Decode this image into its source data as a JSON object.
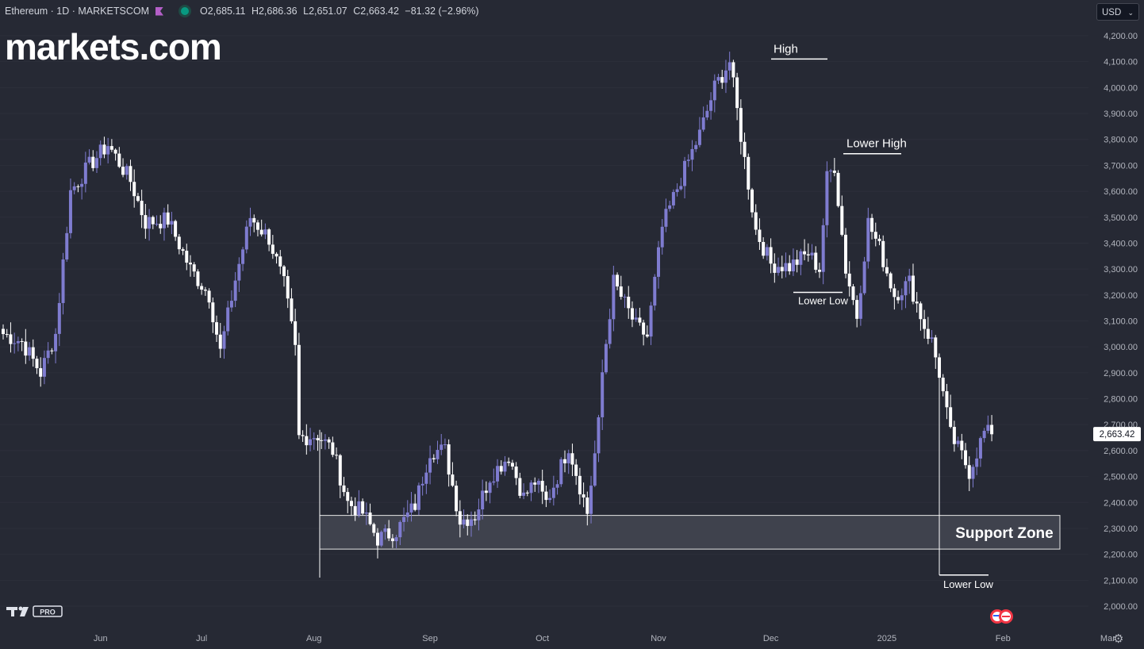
{
  "header": {
    "symbol": "Ethereum · 1D · MARKETSCOM",
    "open_key": "O",
    "open": "2,685.11",
    "high_key": "H",
    "high": "2,686.36",
    "low_key": "L",
    "low": "2,651.07",
    "close_key": "C",
    "close": "2,663.42",
    "change": "−81.32 (−2.96%)"
  },
  "logo_text": "markets.com",
  "currency_select": "USD",
  "icons": [
    "flag-icon",
    "market-status-icon",
    "chevron-down-icon",
    "tradingview-logo-icon",
    "settings-gear-icon",
    "economic-events-icon"
  ],
  "colors": {
    "background": "#262934",
    "bull": "#7f7cd0",
    "bear": "#ffffff",
    "text": "#d1d4dc",
    "zone": "#3f424d"
  },
  "chart_data": {
    "type": "candlestick",
    "title": "Ethereum · 1D · MARKETSCOM",
    "y_ticks": [
      "4,200.00",
      "4,100.00",
      "4,000.00",
      "3,900.00",
      "3,800.00",
      "3,700.00",
      "3,600.00",
      "3,500.00",
      "3,400.00",
      "3,300.00",
      "3,200.00",
      "3,100.00",
      "3,000.00",
      "2,900.00",
      "2,800.00",
      "2,700.00",
      "2,600.00",
      "2,500.00",
      "2,400.00",
      "2,300.00",
      "2,200.00",
      "2,100.00",
      "2,000.00"
    ],
    "x_ticks": [
      "Jun",
      "Jul",
      "Aug",
      "Sep",
      "Oct",
      "Nov",
      "Dec",
      "2025",
      "Feb",
      "Mar"
    ],
    "ylim": [
      1950,
      4250
    ],
    "last_price": "2,663.42",
    "annotations": [
      {
        "text": "High",
        "price": 4110
      },
      {
        "text": "Lower High",
        "price": 3745
      },
      {
        "text": "Lower Low",
        "price": 3210
      },
      {
        "text": "Lower Low",
        "price": 2120
      }
    ],
    "support_zone": {
      "label": "Support Zone",
      "from": 2220,
      "to": 2350
    },
    "waypoints": [
      [
        0,
        3050
      ],
      [
        5,
        3020
      ],
      [
        10,
        2900
      ],
      [
        14,
        3050
      ],
      [
        18,
        3600
      ],
      [
        23,
        3700
      ],
      [
        28,
        3780
      ],
      [
        34,
        3640
      ],
      [
        38,
        3480
      ],
      [
        44,
        3490
      ],
      [
        50,
        3300
      ],
      [
        55,
        3200
      ],
      [
        58,
        2980
      ],
      [
        62,
        3260
      ],
      [
        66,
        3500
      ],
      [
        71,
        3420
      ],
      [
        75,
        3240
      ],
      [
        78,
        2990
      ],
      [
        79,
        2650
      ],
      [
        84,
        2660
      ],
      [
        88,
        2600
      ],
      [
        92,
        2400
      ],
      [
        96,
        2360
      ],
      [
        100,
        2260
      ],
      [
        105,
        2290
      ],
      [
        110,
        2390
      ],
      [
        114,
        2600
      ],
      [
        118,
        2600
      ],
      [
        122,
        2330
      ],
      [
        126,
        2350
      ],
      [
        130,
        2500
      ],
      [
        135,
        2580
      ],
      [
        139,
        2420
      ],
      [
        142,
        2480
      ],
      [
        145,
        2400
      ],
      [
        148,
        2500
      ],
      [
        151,
        2620
      ],
      [
        156,
        2360
      ],
      [
        159,
        2700
      ],
      [
        160,
        2900
      ],
      [
        163,
        3250
      ],
      [
        169,
        3080
      ],
      [
        172,
        3040
      ],
      [
        176,
        3460
      ],
      [
        181,
        3650
      ],
      [
        186,
        3820
      ],
      [
        190,
        4000
      ],
      [
        194,
        4100
      ],
      [
        198,
        3720
      ],
      [
        201,
        3450
      ],
      [
        205,
        3320
      ],
      [
        210,
        3310
      ],
      [
        215,
        3360
      ],
      [
        218,
        3300
      ],
      [
        220,
        3650
      ],
      [
        222,
        3700
      ],
      [
        225,
        3300
      ],
      [
        228,
        3120
      ],
      [
        231,
        3480
      ],
      [
        234,
        3380
      ],
      [
        238,
        3200
      ],
      [
        242,
        3250
      ],
      [
        246,
        3080
      ],
      [
        248,
        3020
      ],
      [
        250,
        2900
      ],
      [
        253,
        2660
      ],
      [
        256,
        2580
      ],
      [
        258,
        2520
      ],
      [
        262,
        2670
      ],
      [
        264,
        2663
      ]
    ]
  }
}
